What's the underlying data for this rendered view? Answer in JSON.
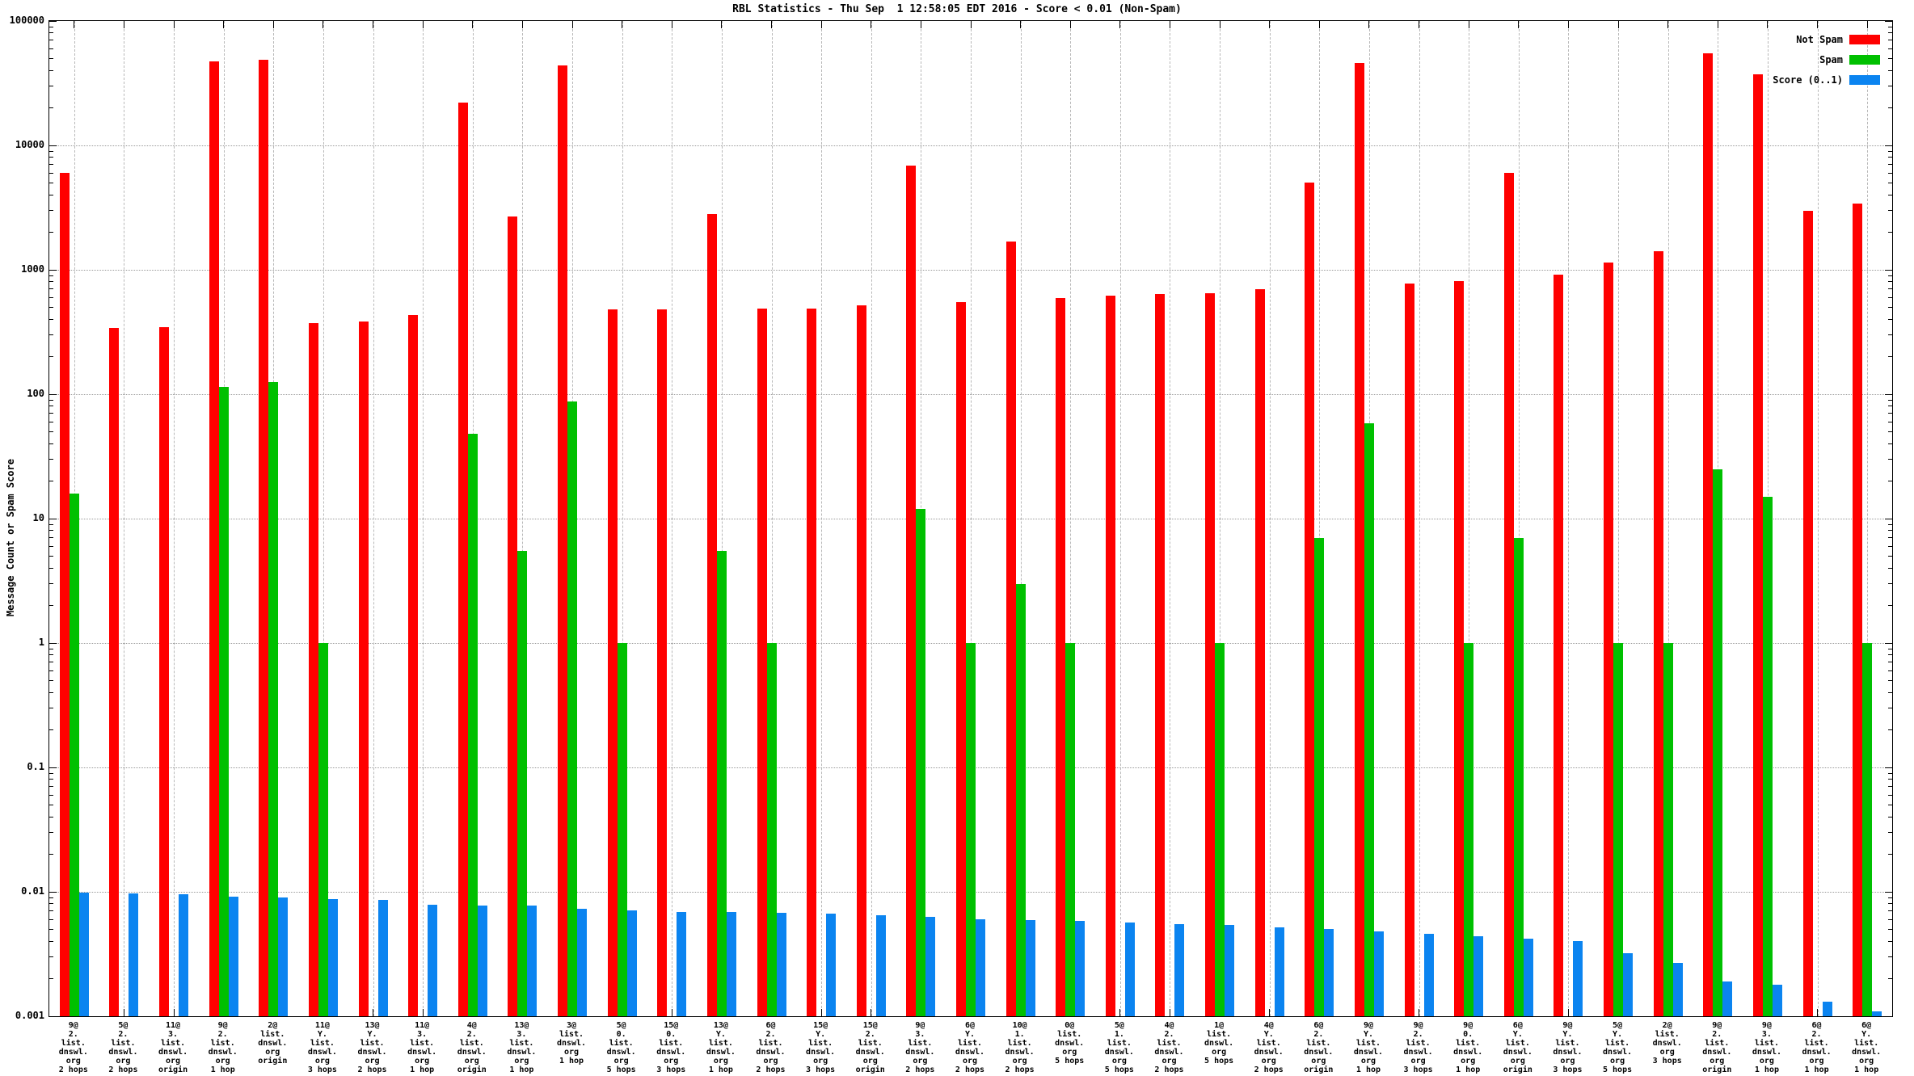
{
  "chart_data": {
    "type": "bar",
    "title": "RBL Statistics - Thu Sep  1 12:58:05 EDT 2016 - Score < 0.01 (Non-Spam)",
    "ylabel": "Message Count or Spam Score",
    "xlabel": "",
    "y_scale": "log",
    "ylim": [
      0.001,
      100000
    ],
    "yticks": [
      "100000",
      "10000",
      "1000",
      "100",
      "10",
      "1",
      "0.1",
      "0.01",
      "0.001"
    ],
    "grid": true,
    "legend_position": "top-right-inside",
    "series": [
      {
        "name": "Not Spam",
        "color": "#ff0000",
        "key": "not_spam"
      },
      {
        "name": "Spam",
        "color": "#00c000",
        "key": "spam"
      },
      {
        "name": "Score (0..1)",
        "color": "#0b84f0",
        "key": "score"
      }
    ],
    "groups": [
      {
        "label": [
          "9@",
          "2.",
          "list.",
          "dnswl.",
          "org",
          "2 hops"
        ],
        "not_spam": 6000,
        "spam": 16,
        "score": 0.0098
      },
      {
        "label": [
          "5@",
          "2.",
          "list.",
          "dnswl.",
          "org",
          "2 hops"
        ],
        "not_spam": 340,
        "spam": 0,
        "score": 0.0097
      },
      {
        "label": [
          "11@",
          "3.",
          "list.",
          "dnswl.",
          "org",
          "origin"
        ],
        "not_spam": 345,
        "spam": 0,
        "score": 0.0096
      },
      {
        "label": [
          "9@",
          "2.",
          "list.",
          "dnswl.",
          "org",
          "1 hop"
        ],
        "not_spam": 47000,
        "spam": 115,
        "score": 0.0092
      },
      {
        "label": [
          "2@",
          "list.",
          "dnswl.",
          "org",
          "origin"
        ],
        "not_spam": 49000,
        "spam": 125,
        "score": 0.009
      },
      {
        "label": [
          "11@",
          "Y.",
          "list.",
          "dnswl.",
          "org",
          "3 hops"
        ],
        "not_spam": 370,
        "spam": 1,
        "score": 0.0088
      },
      {
        "label": [
          "13@",
          "Y.",
          "list.",
          "dnswl.",
          "org",
          "2 hops"
        ],
        "not_spam": 385,
        "spam": 0,
        "score": 0.0086
      },
      {
        "label": [
          "11@",
          "3.",
          "list.",
          "dnswl.",
          "org",
          "1 hop"
        ],
        "not_spam": 430,
        "spam": 0,
        "score": 0.0079
      },
      {
        "label": [
          "4@",
          "2.",
          "list.",
          "dnswl.",
          "org",
          "origin"
        ],
        "not_spam": 22000,
        "spam": 48,
        "score": 0.0078
      },
      {
        "label": [
          "13@",
          "3.",
          "list.",
          "dnswl.",
          "org",
          "1 hop"
        ],
        "not_spam": 2700,
        "spam": 5.5,
        "score": 0.0077
      },
      {
        "label": [
          "3@",
          "list.",
          "dnswl.",
          "org",
          "1 hop"
        ],
        "not_spam": 44000,
        "spam": 88,
        "score": 0.0073
      },
      {
        "label": [
          "5@",
          "0.",
          "list.",
          "dnswl.",
          "org",
          "5 hops"
        ],
        "not_spam": 480,
        "spam": 1,
        "score": 0.0071
      },
      {
        "label": [
          "15@",
          "0.",
          "list.",
          "dnswl.",
          "org",
          "3 hops"
        ],
        "not_spam": 480,
        "spam": 0,
        "score": 0.0069
      },
      {
        "label": [
          "13@",
          "Y.",
          "list.",
          "dnswl.",
          "org",
          "1 hop"
        ],
        "not_spam": 2800,
        "spam": 5.5,
        "score": 0.0069
      },
      {
        "label": [
          "6@",
          "2.",
          "list.",
          "dnswl.",
          "org",
          "2 hops"
        ],
        "not_spam": 485,
        "spam": 1,
        "score": 0.0068
      },
      {
        "label": [
          "15@",
          "Y.",
          "list.",
          "dnswl.",
          "org",
          "3 hops"
        ],
        "not_spam": 485,
        "spam": 0,
        "score": 0.0067
      },
      {
        "label": [
          "15@",
          "2.",
          "list.",
          "dnswl.",
          "org",
          "origin"
        ],
        "not_spam": 520,
        "spam": 0,
        "score": 0.0065
      },
      {
        "label": [
          "9@",
          "3.",
          "list.",
          "dnswl.",
          "org",
          "2 hops"
        ],
        "not_spam": 6900,
        "spam": 12,
        "score": 0.0063
      },
      {
        "label": [
          "6@",
          "Y.",
          "list.",
          "dnswl.",
          "org",
          "2 hops"
        ],
        "not_spam": 550,
        "spam": 1,
        "score": 0.006
      },
      {
        "label": [
          "10@",
          "1.",
          "list.",
          "dnswl.",
          "org",
          "2 hops"
        ],
        "not_spam": 1700,
        "spam": 3,
        "score": 0.0059
      },
      {
        "label": [
          "0@",
          "list.",
          "dnswl.",
          "org",
          "5 hops"
        ],
        "not_spam": 590,
        "spam": 1,
        "score": 0.0058
      },
      {
        "label": [
          "5@",
          "1.",
          "list.",
          "dnswl.",
          "org",
          "5 hops"
        ],
        "not_spam": 620,
        "spam": 0,
        "score": 0.0057
      },
      {
        "label": [
          "4@",
          "2.",
          "list.",
          "dnswl.",
          "org",
          "2 hops"
        ],
        "not_spam": 640,
        "spam": 0,
        "score": 0.0055
      },
      {
        "label": [
          "1@",
          "list.",
          "dnswl.",
          "org",
          "5 hops"
        ],
        "not_spam": 650,
        "spam": 1,
        "score": 0.0054
      },
      {
        "label": [
          "4@",
          "Y.",
          "list.",
          "dnswl.",
          "org",
          "2 hops"
        ],
        "not_spam": 700,
        "spam": 0,
        "score": 0.0052
      },
      {
        "label": [
          "6@",
          "2.",
          "list.",
          "dnswl.",
          "org",
          "origin"
        ],
        "not_spam": 5000,
        "spam": 7,
        "score": 0.005
      },
      {
        "label": [
          "9@",
          "Y.",
          "list.",
          "dnswl.",
          "org",
          "1 hop"
        ],
        "not_spam": 46000,
        "spam": 58,
        "score": 0.0048
      },
      {
        "label": [
          "9@",
          "2.",
          "list.",
          "dnswl.",
          "org",
          "3 hops"
        ],
        "not_spam": 780,
        "spam": 0,
        "score": 0.0046
      },
      {
        "label": [
          "9@",
          "0.",
          "list.",
          "dnswl.",
          "org",
          "1 hop"
        ],
        "not_spam": 810,
        "spam": 1,
        "score": 0.0044
      },
      {
        "label": [
          "6@",
          "Y.",
          "list.",
          "dnswl.",
          "org",
          "origin"
        ],
        "not_spam": 6000,
        "spam": 7,
        "score": 0.0042
      },
      {
        "label": [
          "9@",
          "Y.",
          "list.",
          "dnswl.",
          "org",
          "3 hops"
        ],
        "not_spam": 910,
        "spam": 0,
        "score": 0.004
      },
      {
        "label": [
          "5@",
          "Y.",
          "list.",
          "dnswl.",
          "org",
          "5 hops"
        ],
        "not_spam": 1150,
        "spam": 1,
        "score": 0.0032
      },
      {
        "label": [
          "2@",
          "list.",
          "dnswl.",
          "org",
          "3 hops"
        ],
        "not_spam": 1400,
        "spam": 1,
        "score": 0.0027
      },
      {
        "label": [
          "9@",
          "2.",
          "list.",
          "dnswl.",
          "org",
          "origin"
        ],
        "not_spam": 55000,
        "spam": 25,
        "score": 0.0019
      },
      {
        "label": [
          "9@",
          "3.",
          "list.",
          "dnswl.",
          "org",
          "1 hop"
        ],
        "not_spam": 37000,
        "spam": 15,
        "score": 0.0018
      },
      {
        "label": [
          "6@",
          "2.",
          "list.",
          "dnswl.",
          "org",
          "1 hop"
        ],
        "not_spam": 3000,
        "spam": 0,
        "score": 0.0013
      },
      {
        "label": [
          "6@",
          "Y.",
          "list.",
          "dnswl.",
          "org",
          "1 hop"
        ],
        "not_spam": 3400,
        "spam": 1,
        "score": 0.0011
      }
    ]
  }
}
